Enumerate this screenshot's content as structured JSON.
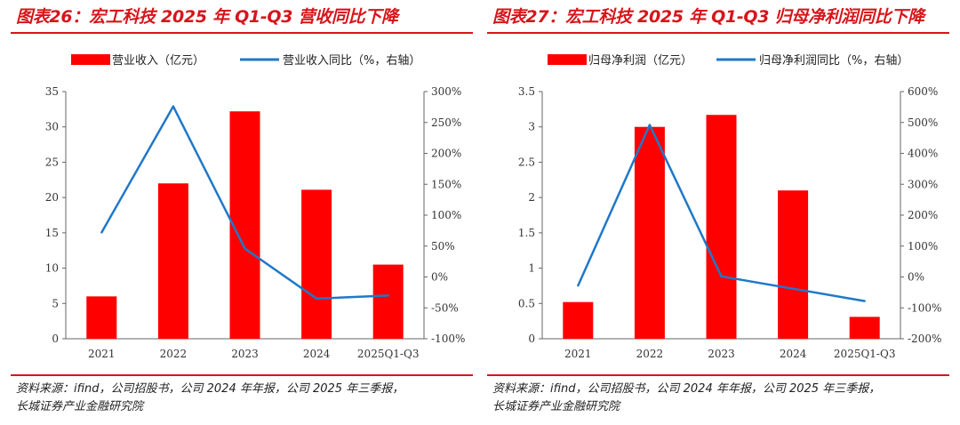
{
  "colors": {
    "bar": "#ff0000",
    "line": "#1f78c8",
    "accent": "#d7151a"
  },
  "charts": [
    {
      "title": "图表26：宏工科技 2025 年 Q1-Q3 营收同比下降",
      "source_line1": "资料来源：ifind，公司招股书，公司 2024 年年报，公司 2025 年三季报，",
      "source_line2": "长城证券产业金融研究院",
      "y_left_ticks": [
        "0",
        "5",
        "10",
        "15",
        "20",
        "25",
        "30",
        "35"
      ],
      "y_right_ticks": [
        "-100%",
        "-50%",
        "0%",
        "50%",
        "100%",
        "150%",
        "200%",
        "250%",
        "300%"
      ]
    },
    {
      "title": "图表27：宏工科技 2025 年 Q1-Q3 归母净利润同比下降",
      "source_line1": "资料来源：ifind，公司招股书，公司 2024 年年报，公司 2025 年三季报，",
      "source_line2": "长城证券产业金融研究院",
      "y_left_ticks": [
        "0",
        "0.5",
        "1",
        "1.5",
        "2",
        "2.5",
        "3",
        "3.5"
      ],
      "y_right_ticks": [
        "-200%",
        "-100%",
        "0%",
        "100%",
        "200%",
        "300%",
        "400%",
        "500%",
        "600%"
      ]
    }
  ],
  "chart_data": [
    {
      "type": "bar",
      "title": "图表26：宏工科技 2025 年 Q1-Q3 营收同比下降",
      "categories": [
        "2021",
        "2022",
        "2023",
        "2024",
        "2025Q1-Q3"
      ],
      "series": [
        {
          "name": "营业收入（亿元）",
          "type": "bar",
          "axis": "left",
          "values": [
            6.0,
            22.0,
            32.2,
            21.1,
            10.5
          ]
        },
        {
          "name": "营业收入同比（%，右轴）",
          "type": "line",
          "axis": "right",
          "values": [
            72,
            276,
            46,
            -35,
            -30
          ]
        }
      ],
      "ylim": [
        0,
        35
      ],
      "ylim_right": [
        -100,
        300
      ],
      "legend": "top"
    },
    {
      "type": "bar",
      "title": "图表27：宏工科技 2025 年 Q1-Q3 归母净利润同比下降",
      "categories": [
        "2021",
        "2022",
        "2023",
        "2024",
        "2025Q1-Q3"
      ],
      "series": [
        {
          "name": "归母净利润（亿元）",
          "type": "bar",
          "axis": "left",
          "values": [
            0.52,
            3.0,
            3.17,
            2.1,
            0.31
          ]
        },
        {
          "name": "归母净利润同比（%，右轴）",
          "type": "line",
          "axis": "right",
          "values": [
            -28,
            492,
            2,
            -38,
            -78
          ]
        }
      ],
      "ylim": [
        0,
        3.5
      ],
      "ylim_right": [
        -200,
        600
      ],
      "legend": "top"
    }
  ]
}
